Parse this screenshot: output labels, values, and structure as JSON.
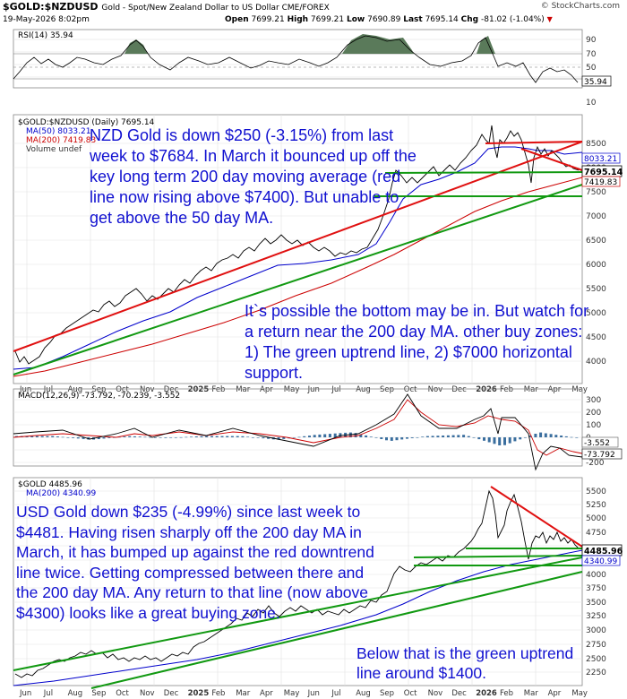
{
  "header": {
    "symbol": "$GOLD:$NZDUSD",
    "description": "Gold - Spot/New Zealand Dollar to US Dollar CME/FOREX",
    "timestamp": "19-May-2026 8:02pm",
    "open_label": "Open",
    "open": "7699.21",
    "high_label": "High",
    "high": "7699.21",
    "low_label": "Low",
    "low": "7690.89",
    "last_label": "Last",
    "last": "7695.14",
    "chg_label": "Chg",
    "chg": "-81.02 (-1.04%)",
    "logo": "© StockCharts.com"
  },
  "rsi_panel": {
    "legend": "RSI(14) 35.94",
    "current": "35.94",
    "ticks": [
      "90",
      "70",
      "50",
      "30",
      "10"
    ]
  },
  "nzd_panel": {
    "legend_title": "$GOLD:$NZDUSD (Daily) 7695.14",
    "legend_ma50": "MA(50) 8033.21",
    "legend_ma200": "MA(200) 7419.83",
    "legend_volume": "Volume undef",
    "ticks": [
      "8500",
      "8000",
      "7500",
      "7000",
      "6500",
      "6000",
      "5500",
      "5000",
      "4500",
      "4000"
    ],
    "tags": {
      "ma50": "8033.21",
      "last": "7695.14",
      "ma200": "7419.83"
    }
  },
  "macd_panel": {
    "legend": "MACD(12,26,9) -73.792, -70.239, -3.552",
    "ticks": [
      "300",
      "200",
      "100",
      "0",
      "-100",
      "-200"
    ],
    "tags": {
      "hist": "-3.552",
      "macd": "-73.792"
    }
  },
  "usd_panel": {
    "legend_title": "$GOLD 4485.96",
    "legend_ma200": "MA(200) 4340.99",
    "ticks": [
      "5500",
      "5250",
      "5000",
      "4750",
      "4500",
      "4250",
      "4000",
      "3750",
      "3500",
      "3250",
      "3000",
      "2750",
      "2500",
      "2250"
    ],
    "tags": {
      "last": "4485.96",
      "ma200": "4340.99"
    }
  },
  "x_axis": [
    "Jun",
    "Jul",
    "Aug",
    "Sep",
    "Oct",
    "Nov",
    "Dec",
    "2025",
    "Feb",
    "Mar",
    "Apr",
    "May",
    "Jun",
    "Jul",
    "Aug",
    "Sep",
    "Oct",
    "Nov",
    "Dec",
    "2026",
    "Feb",
    "Mar",
    "Apr",
    "May"
  ],
  "annotations": {
    "nzd_main": "NZD Gold is down $250 (-3.15%) from last week to $7684. In March it bounced up off the key long term 200 day moving average (red line now rising above $7400). But unable to get above the 50 day MA.",
    "nzd_buy": "It`s possible the bottom may be in. But watch for a return near the 200 day MA. other buy zones: 1) The green uptrend line, 2) $7000 horizontal support.",
    "usd_main": "USD Gold down $235 (-4.99%) since last week to $4481. Having risen sharply off the 200 day MA in March, it has bumped up against the red downtrend line twice. Getting compressed between there and the 200 day MA. Any return to that line (now above $4300) looks like a great buying zone.",
    "usd_uptrend": "Below that is the green uptrend line around $1400."
  },
  "colors": {
    "price": "#000000",
    "ma50": "#0000cc",
    "ma200": "#cc0000",
    "trend_up": "#119911",
    "trend_down": "#e01010",
    "annotation": "#1010d0",
    "rsi_fill": "#5a7a5a",
    "hist": "#3a6e9e"
  },
  "chart_data": [
    {
      "type": "line",
      "title": "RSI(14)",
      "ylim": [
        0,
        100
      ],
      "grid": true,
      "x": [
        "Jun",
        "Aug",
        "Oct",
        "Dec",
        "2025",
        "Mar",
        "May",
        "Jul",
        "Sep",
        "Nov",
        "2026",
        "Mar",
        "May"
      ],
      "series": [
        {
          "name": "RSI(14)",
          "values": [
            55,
            65,
            58,
            52,
            60,
            62,
            55,
            58,
            66,
            60,
            70,
            45,
            36
          ]
        }
      ]
    },
    {
      "type": "line",
      "title": "$GOLD:$NZDUSD (Daily)",
      "ylim": [
        3600,
        9000
      ],
      "grid": true,
      "x": [
        "Jun",
        "Aug",
        "Oct",
        "Dec",
        "2025",
        "Mar",
        "May",
        "Jul",
        "Sep",
        "Oct",
        "Nov",
        "Dec",
        "2026",
        "Feb",
        "Mar",
        "Apr",
        "May"
      ],
      "series": [
        {
          "name": "$GOLD:$NZDUSD",
          "values": [
            3900,
            4050,
            4450,
            4400,
            4700,
            5000,
            5350,
            5400,
            5800,
            7300,
            7150,
            7500,
            7800,
            8600,
            7300,
            8200,
            7695
          ]
        },
        {
          "name": "MA(50)",
          "values": [
            3850,
            3950,
            4250,
            4350,
            4550,
            4850,
            5200,
            5350,
            5600,
            6600,
            7050,
            7300,
            7600,
            8000,
            7900,
            8050,
            8033
          ]
        },
        {
          "name": "MA(200)",
          "values": [
            3600,
            3750,
            3950,
            4100,
            4300,
            4550,
            4850,
            5050,
            5300,
            5700,
            6050,
            6400,
            6700,
            7000,
            7200,
            7350,
            7420
          ]
        }
      ]
    },
    {
      "type": "line",
      "title": "MACD(12,26,9)",
      "ylim": [
        -250,
        350
      ],
      "grid": true,
      "x": [
        "Jun",
        "Aug",
        "Oct",
        "Dec",
        "2025",
        "Mar",
        "May",
        "Jul",
        "Sep",
        "Oct",
        "Nov",
        "2026",
        "Feb",
        "Mar",
        "Apr",
        "May"
      ],
      "series": [
        {
          "name": "MACD",
          "values": [
            30,
            60,
            -20,
            40,
            20,
            50,
            70,
            -30,
            100,
            260,
            60,
            120,
            200,
            -170,
            10,
            -74
          ]
        },
        {
          "name": "Signal",
          "values": [
            20,
            50,
            0,
            30,
            25,
            40,
            60,
            -10,
            80,
            220,
            90,
            110,
            180,
            -100,
            -30,
            -70
          ]
        }
      ]
    },
    {
      "type": "line",
      "title": "$GOLD",
      "ylim": [
        2150,
        5600
      ],
      "grid": true,
      "x": [
        "Jun",
        "Aug",
        "Oct",
        "Dec",
        "2025",
        "Mar",
        "May",
        "Jul",
        "Sep",
        "Oct",
        "Nov",
        "Dec",
        "2026",
        "Feb",
        "Mar",
        "Apr",
        "May"
      ],
      "series": [
        {
          "name": "$GOLD",
          "values": [
            2350,
            2450,
            2650,
            2620,
            2700,
            2900,
            3300,
            3350,
            3550,
            4250,
            4050,
            4350,
            4600,
            5400,
            4500,
            4750,
            4486
          ]
        },
        {
          "name": "MA(200)",
          "values": [
            2150,
            2250,
            2350,
            2450,
            2550,
            2700,
            2850,
            3000,
            3150,
            3350,
            3550,
            3750,
            3950,
            4150,
            4250,
            4320,
            4341
          ]
        }
      ]
    }
  ]
}
